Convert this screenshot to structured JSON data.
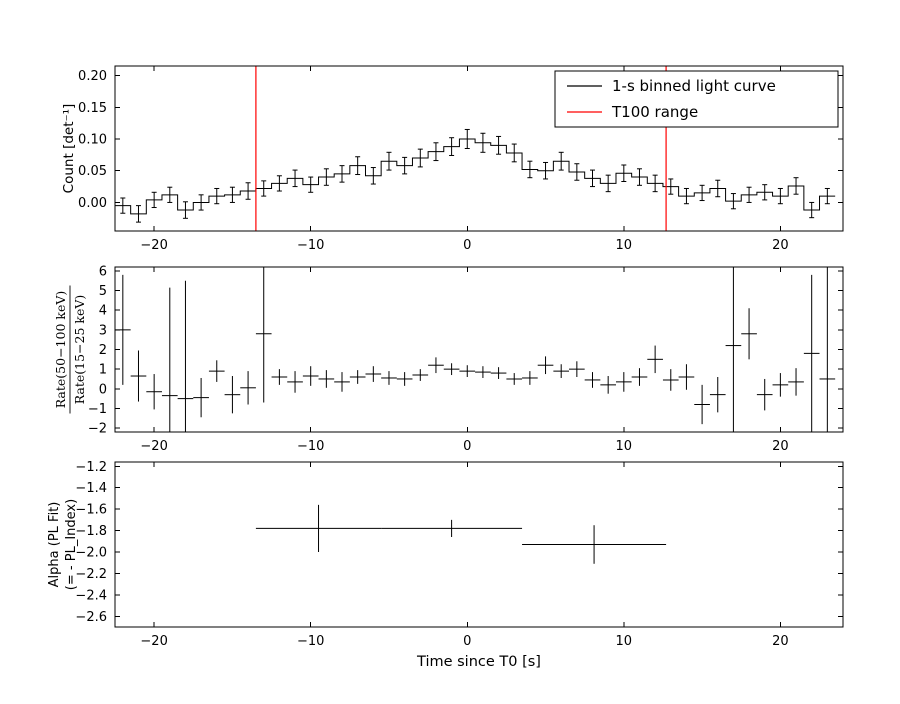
{
  "figure": {
    "background": "#ffffff",
    "axis_color": "#000000",
    "accent_red": "#ff0000",
    "xlabel": "Time since T0 [s]",
    "xlim": [
      -22.5,
      24.0
    ],
    "xtick_values": [
      -20,
      -10,
      0,
      10,
      20
    ],
    "xtick_labels": [
      "−20",
      "−10",
      "0",
      "10",
      "20"
    ]
  },
  "chart_data": [
    {
      "type": "line",
      "style": "step-histogram-with-errorbars",
      "series_name": "1-s binned light curve",
      "ylabel": "Count [det⁻¹]",
      "ylim": [
        -0.045,
        0.215
      ],
      "ytick_values": [
        0.0,
        0.05,
        0.1,
        0.15,
        0.2
      ],
      "ytick_labels": [
        "0.00",
        "0.05",
        "0.10",
        "0.15",
        "0.20"
      ],
      "bin_width": 1,
      "x": [
        -22,
        -21,
        -20,
        -19,
        -18,
        -17,
        -16,
        -15,
        -14,
        -13,
        -12,
        -11,
        -10,
        -9,
        -8,
        -7,
        -6,
        -5,
        -4,
        -3,
        -2,
        -1,
        0,
        1,
        2,
        3,
        4,
        5,
        6,
        7,
        8,
        9,
        10,
        11,
        12,
        13,
        14,
        15,
        16,
        17,
        18,
        19,
        20,
        21,
        22,
        23
      ],
      "y": [
        -0.005,
        -0.018,
        0.004,
        0.012,
        -0.012,
        0.0,
        0.01,
        0.012,
        0.018,
        0.022,
        0.03,
        0.038,
        0.028,
        0.04,
        0.045,
        0.058,
        0.042,
        0.065,
        0.058,
        0.07,
        0.08,
        0.088,
        0.1,
        0.094,
        0.09,
        0.078,
        0.052,
        0.05,
        0.065,
        0.048,
        0.038,
        0.03,
        0.046,
        0.04,
        0.03,
        0.025,
        0.01,
        0.015,
        0.022,
        0.002,
        0.012,
        0.016,
        0.01,
        0.026,
        -0.012,
        0.01
      ],
      "yerr": [
        0.012,
        0.013,
        0.012,
        0.012,
        0.013,
        0.012,
        0.012,
        0.012,
        0.013,
        0.012,
        0.012,
        0.013,
        0.012,
        0.013,
        0.013,
        0.014,
        0.013,
        0.014,
        0.013,
        0.014,
        0.014,
        0.014,
        0.015,
        0.015,
        0.014,
        0.014,
        0.013,
        0.013,
        0.014,
        0.013,
        0.013,
        0.013,
        0.013,
        0.013,
        0.013,
        0.012,
        0.012,
        0.012,
        0.013,
        0.012,
        0.012,
        0.012,
        0.012,
        0.013,
        0.012,
        0.012
      ],
      "vlines": {
        "label": "T100 range",
        "color": "#ff0000",
        "x": [
          -13.5,
          12.7
        ]
      },
      "legend": {
        "position": "upper right",
        "entries": [
          {
            "label": "1-s binned light curve",
            "color": "#000000"
          },
          {
            "label": "T100 range",
            "color": "#ff0000"
          }
        ]
      }
    },
    {
      "type": "scatter",
      "style": "errorbar-cross",
      "ylabel": {
        "numerator": "Rate(50−100 keV)",
        "denominator": "Rate(15−25 keV)"
      },
      "ylim": [
        -2.2,
        6.2
      ],
      "ytick_values": [
        -2,
        -1,
        0,
        1,
        2,
        3,
        4,
        5,
        6
      ],
      "ytick_labels": [
        "−2",
        "−1",
        "0",
        "1",
        "2",
        "3",
        "4",
        "5",
        "6"
      ],
      "xerr": 0.5,
      "x": [
        -22,
        -21,
        -20,
        -19,
        -18,
        -17,
        -16,
        -15,
        -14,
        -13,
        -12,
        -11,
        -10,
        -9,
        -8,
        -7,
        -6,
        -5,
        -4,
        -3,
        -2,
        -1,
        0,
        1,
        2,
        3,
        4,
        5,
        6,
        7,
        8,
        9,
        10,
        11,
        12,
        13,
        14,
        15,
        16,
        17,
        18,
        19,
        20,
        21,
        22,
        23
      ],
      "y": [
        3.0,
        0.65,
        -0.15,
        -0.35,
        -0.5,
        -0.45,
        0.9,
        -0.3,
        0.05,
        2.8,
        0.6,
        0.35,
        0.65,
        0.5,
        0.35,
        0.6,
        0.75,
        0.55,
        0.5,
        0.7,
        1.2,
        1.0,
        0.9,
        0.85,
        0.8,
        0.5,
        0.55,
        1.2,
        0.9,
        1.0,
        0.45,
        0.2,
        0.35,
        0.6,
        1.5,
        0.45,
        0.6,
        -0.8,
        -0.3,
        2.2,
        2.8,
        -0.3,
        0.2,
        0.35,
        1.8,
        0.5
      ],
      "yerr": [
        2.8,
        1.3,
        0.9,
        5.5,
        6.0,
        1.0,
        0.55,
        0.95,
        0.85,
        3.5,
        0.4,
        0.55,
        0.5,
        0.45,
        0.5,
        0.35,
        0.4,
        0.35,
        0.35,
        0.3,
        0.4,
        0.3,
        0.3,
        0.3,
        0.3,
        0.3,
        0.35,
        0.45,
        0.35,
        0.4,
        0.4,
        0.45,
        0.5,
        0.45,
        0.7,
        0.55,
        0.65,
        1.0,
        0.9,
        4.5,
        1.3,
        0.8,
        0.6,
        0.7,
        4.0,
        6.0
      ]
    },
    {
      "type": "scatter",
      "style": "errorbar-cross",
      "ylabel_lines": [
        "Alpha (PL Fit)",
        "(= - PL_Index)"
      ],
      "ylim": [
        -2.7,
        -1.16
      ],
      "ytick_values": [
        -2.6,
        -2.4,
        -2.2,
        -2.0,
        -1.8,
        -1.6,
        -1.4,
        -1.2
      ],
      "ytick_labels": [
        "−2.6",
        "−2.4",
        "−2.2",
        "−2.0",
        "−1.8",
        "−1.6",
        "−1.4",
        "−1.2"
      ],
      "points": [
        {
          "x": -9.5,
          "y": -1.78,
          "xerr": 4.0,
          "yerr": 0.22
        },
        {
          "x": -1.0,
          "y": -1.78,
          "xerr": 4.5,
          "yerr": 0.08
        },
        {
          "x": 8.1,
          "y": -1.93,
          "xerr": 4.6,
          "yerr": 0.18
        }
      ]
    }
  ]
}
